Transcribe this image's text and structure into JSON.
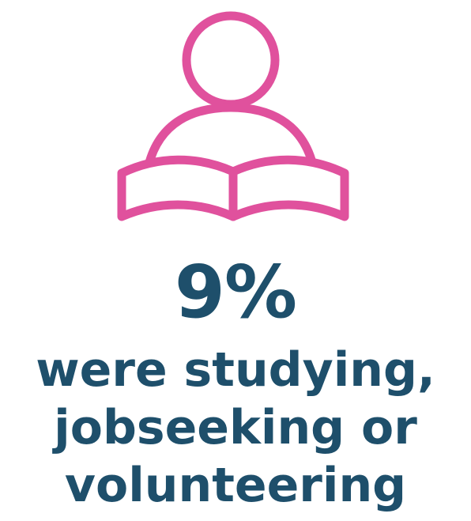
{
  "infographic": {
    "icon": "person-reading-book-icon",
    "icon_color": "#e0519d",
    "text_color": "#1e4f6b",
    "value": "9%",
    "caption_lines": [
      "were studying,",
      "jobseeking or",
      "volunteering"
    ]
  }
}
